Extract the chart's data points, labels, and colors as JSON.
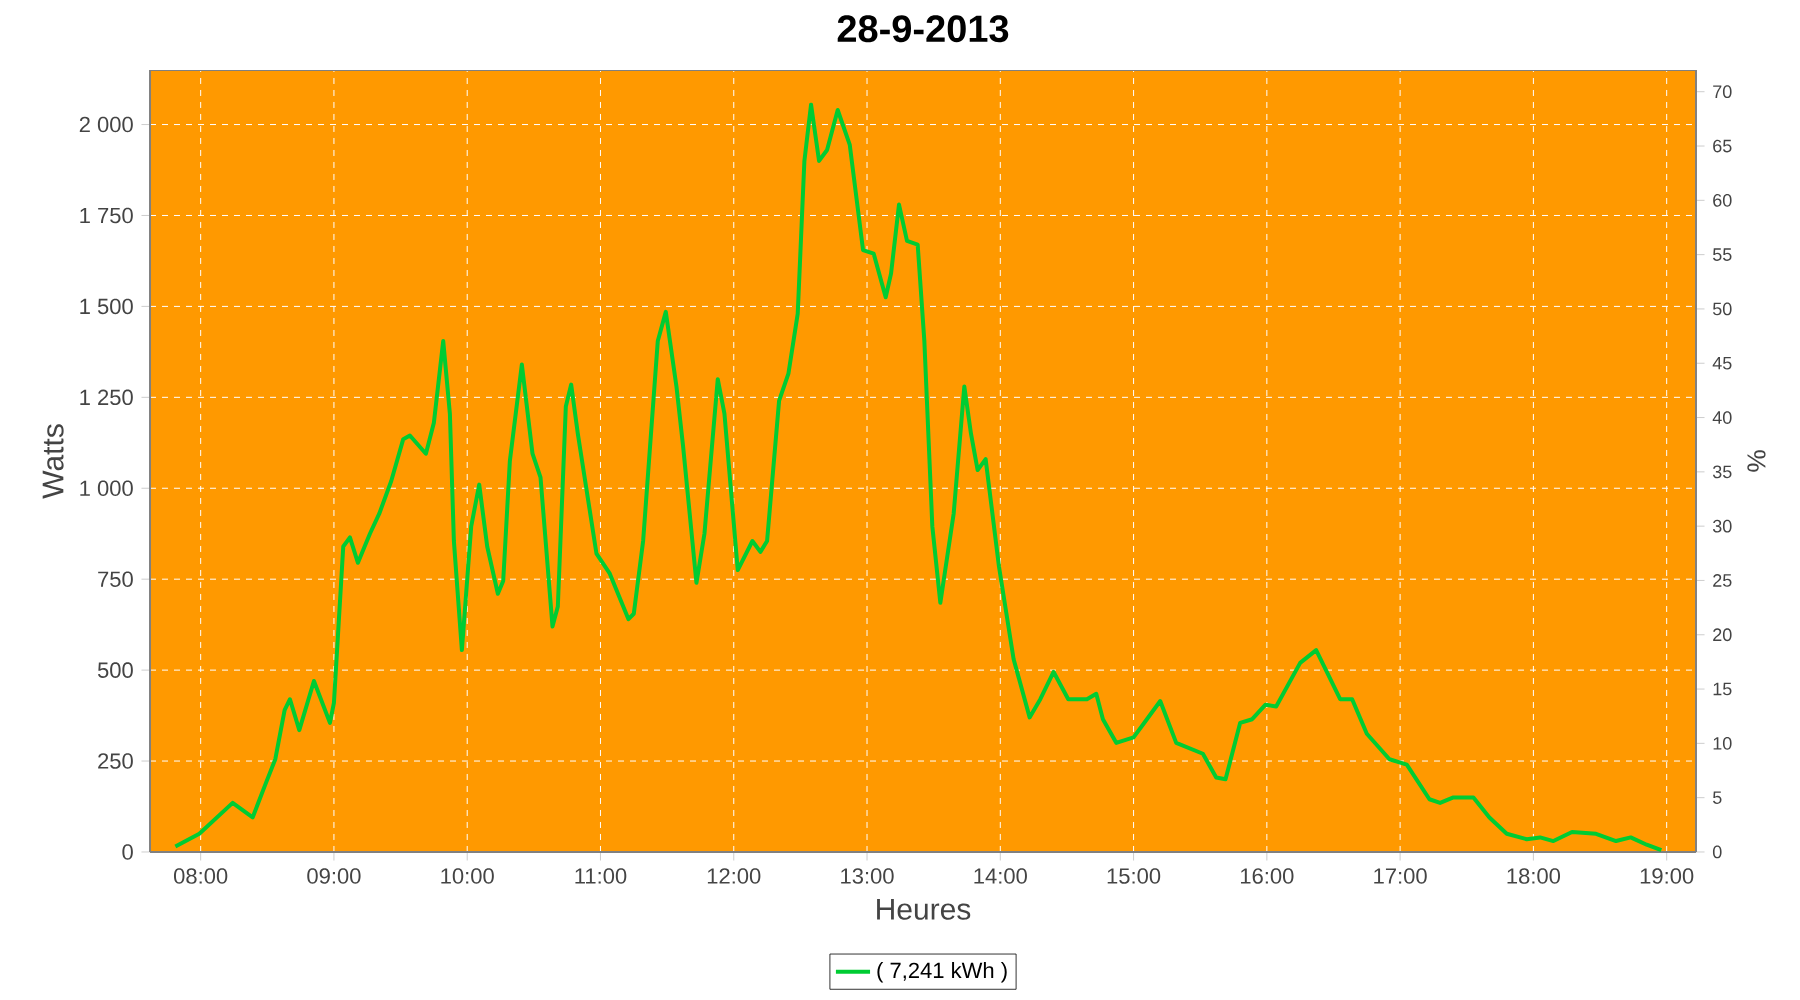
{
  "chart_data": {
    "type": "line",
    "title": "28-9-2013",
    "xlabel": "Heures",
    "ylabel": "Watts",
    "y2label": "%",
    "x": [
      7.81,
      7.99,
      8.24,
      8.39,
      8.49,
      8.56,
      8.63,
      8.67,
      8.74,
      8.85,
      8.97,
      9.0,
      9.07,
      9.12,
      9.18,
      9.27,
      9.34,
      9.43,
      9.52,
      9.57,
      9.69,
      9.75,
      9.82,
      9.87,
      9.9,
      9.96,
      10.03,
      10.09,
      10.15,
      10.23,
      10.27,
      10.32,
      10.41,
      10.49,
      10.55,
      10.64,
      10.68,
      10.74,
      10.78,
      10.83,
      10.97,
      11.07,
      11.21,
      11.25,
      11.32,
      11.43,
      11.49,
      11.57,
      11.62,
      11.72,
      11.78,
      11.88,
      11.93,
      12.03,
      12.14,
      12.2,
      12.25,
      12.34,
      12.41,
      12.48,
      12.53,
      12.58,
      12.64,
      12.7,
      12.78,
      12.87,
      12.97,
      13.05,
      13.14,
      13.18,
      13.24,
      13.3,
      13.38,
      13.43,
      13.49,
      13.55,
      13.65,
      13.73,
      13.78,
      13.83,
      13.89,
      13.99,
      14.1,
      14.22,
      14.3,
      14.4,
      14.51,
      14.65,
      14.72,
      14.77,
      14.87,
      15.0,
      15.1,
      15.2,
      15.32,
      15.52,
      15.62,
      15.69,
      15.8,
      15.89,
      15.99,
      16.07,
      16.25,
      16.37,
      16.55,
      16.64,
      16.75,
      16.92,
      17.05,
      17.22,
      17.3,
      17.4,
      17.55,
      17.67,
      17.8,
      17.95,
      18.05,
      18.15,
      18.29,
      18.47,
      18.62,
      18.73,
      18.85,
      18.96
    ],
    "series": [
      {
        "name": "( 7,241 kWh )",
        "color": "#00cc33",
        "values": [
          15,
          50,
          135,
          95,
          190,
          255,
          390,
          420,
          335,
          470,
          355,
          410,
          840,
          865,
          795,
          875,
          930,
          1020,
          1135,
          1145,
          1095,
          1180,
          1405,
          1205,
          855,
          555,
          895,
          1010,
          840,
          710,
          745,
          1075,
          1340,
          1095,
          1030,
          620,
          675,
          1225,
          1285,
          1150,
          820,
          765,
          640,
          655,
          855,
          1405,
          1485,
          1280,
          1115,
          740,
          875,
          1300,
          1205,
          775,
          855,
          825,
          855,
          1240,
          1315,
          1480,
          1900,
          2055,
          1900,
          1930,
          2040,
          1945,
          1655,
          1645,
          1525,
          1590,
          1780,
          1680,
          1670,
          1405,
          895,
          685,
          930,
          1280,
          1150,
          1050,
          1080,
          785,
          530,
          370,
          420,
          495,
          420,
          420,
          435,
          365,
          300,
          315,
          365,
          415,
          300,
          270,
          205,
          200,
          355,
          365,
          405,
          400,
          520,
          555,
          420,
          420,
          325,
          255,
          240,
          145,
          135,
          150,
          150,
          95,
          50,
          35,
          40,
          30,
          55,
          50,
          30,
          40,
          20,
          5
        ]
      }
    ],
    "xlim": [
      7.62,
      19.22
    ],
    "xticks": [
      {
        "value": 8,
        "label": "08:00"
      },
      {
        "value": 9,
        "label": "09:00"
      },
      {
        "value": 10,
        "label": "10:00"
      },
      {
        "value": 11,
        "label": "11:00"
      },
      {
        "value": 12,
        "label": "12:00"
      },
      {
        "value": 13,
        "label": "13:00"
      },
      {
        "value": 14,
        "label": "14:00"
      },
      {
        "value": 15,
        "label": "15:00"
      },
      {
        "value": 16,
        "label": "16:00"
      },
      {
        "value": 17,
        "label": "17:00"
      },
      {
        "value": 18,
        "label": "18:00"
      },
      {
        "value": 19,
        "label": "19:00"
      }
    ],
    "ylim": [
      0,
      2150
    ],
    "yticks": [
      0,
      250,
      500,
      750,
      {
        "value": 1000,
        "label": "1 000"
      },
      {
        "value": 1250,
        "label": "1 250"
      },
      {
        "value": 1500,
        "label": "1 500"
      },
      {
        "value": 1750,
        "label": "1 750"
      },
      {
        "value": 2000,
        "label": "2 000"
      }
    ],
    "y2lim": [
      0,
      72
    ],
    "y2ticks": [
      0,
      5,
      10,
      15,
      20,
      25,
      30,
      35,
      40,
      45,
      50,
      55,
      60,
      65,
      70
    ],
    "grid": true,
    "legend": "bottom",
    "marker": "none",
    "line_style": "solid"
  }
}
